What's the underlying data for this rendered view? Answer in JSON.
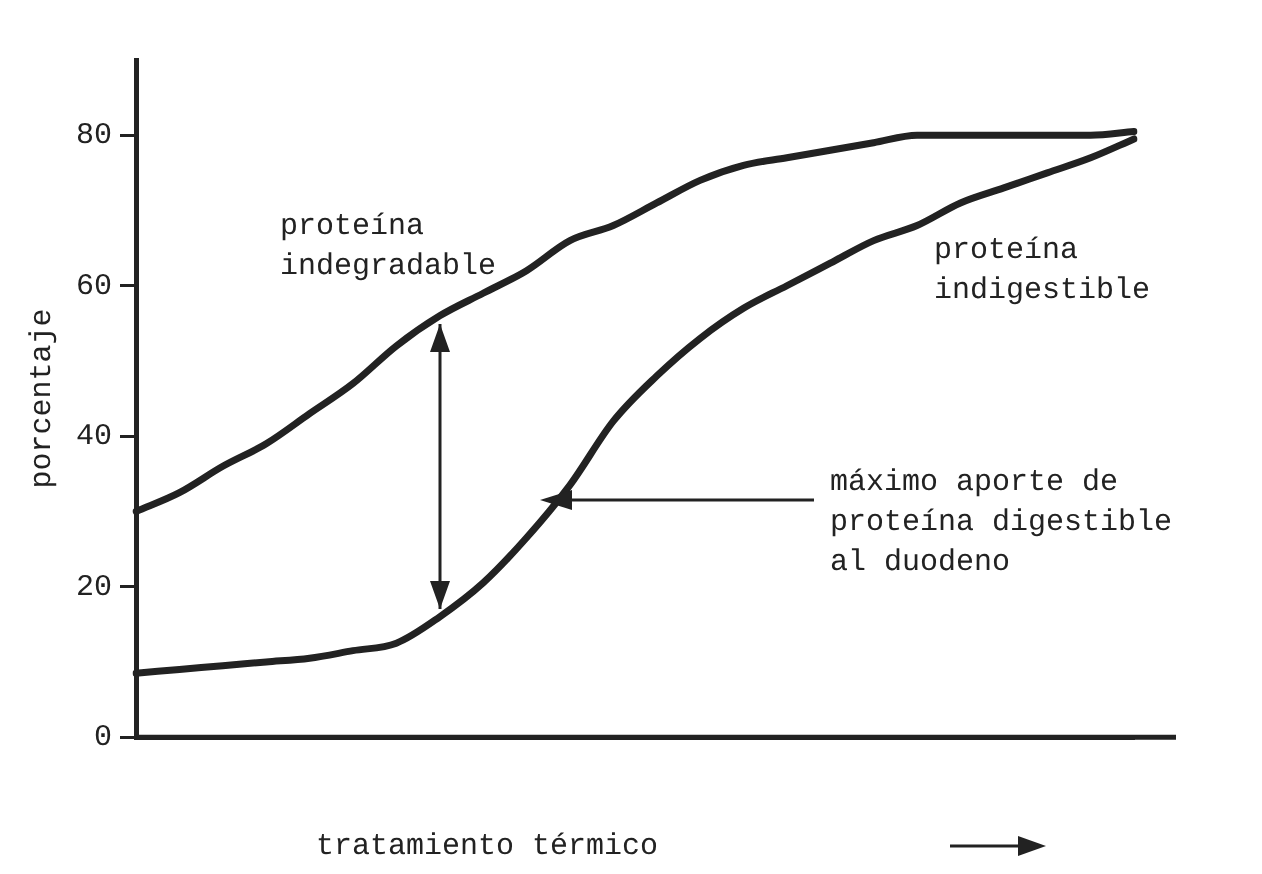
{
  "chart_data": {
    "type": "line",
    "ylabel": "porcentaje",
    "xlabel": "tratamiento térmico",
    "categories": [
      null,
      null,
      null,
      null,
      null,
      null,
      null,
      null,
      null,
      null,
      null,
      null,
      null,
      null,
      null,
      null,
      null,
      null,
      null,
      null,
      null,
      null,
      null,
      null
    ],
    "series": [
      {
        "name": "proteína indegradable",
        "color": "#222222",
        "values": [
          30,
          32.5,
          36,
          39,
          43,
          47,
          52,
          56,
          59,
          62,
          66,
          68,
          71,
          74,
          76,
          77,
          78,
          79,
          80,
          80,
          80,
          80,
          80,
          80.5
        ]
      },
      {
        "name": "proteína indigestible",
        "color": "#222222",
        "values": [
          8.5,
          9,
          9.5,
          10,
          10.5,
          11.5,
          12.5,
          16,
          20.5,
          26.5,
          33.5,
          42,
          48,
          53,
          57,
          60,
          63,
          66,
          68,
          71,
          73,
          75,
          77,
          79.5
        ]
      }
    ],
    "ylim": [
      0,
      90
    ],
    "yticks": [
      0,
      20,
      40,
      60,
      80
    ],
    "grid": false,
    "legend": false,
    "marker": "none",
    "line_style": "solid",
    "annotations": [
      "máximo aporte de proteína digestible al duodeno"
    ]
  }
}
